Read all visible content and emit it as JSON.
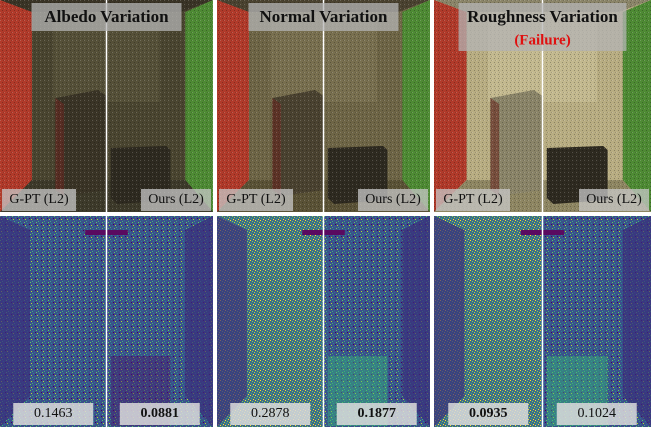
{
  "panels": [
    {
      "title": "Albedo Variation",
      "left_label": "G-PT (L2)",
      "right_label": "Ours (L2)",
      "errors": [
        {
          "text": "0.1463",
          "best": false
        },
        {
          "text": "0.0881",
          "best": true
        }
      ]
    },
    {
      "title": "Normal Variation",
      "left_label": "G-PT (L2)",
      "right_label": "Ours (L2)",
      "errors": [
        {
          "text": "0.2878",
          "best": false
        },
        {
          "text": "0.1877",
          "best": true
        }
      ]
    },
    {
      "title": "Roughness Variation",
      "note": "(Failure)",
      "left_label": "G-PT (L2)",
      "right_label": "Ours (L2)",
      "errors": [
        {
          "text": "0.0935",
          "best": true
        },
        {
          "text": "0.1024",
          "best": false
        }
      ]
    }
  ]
}
